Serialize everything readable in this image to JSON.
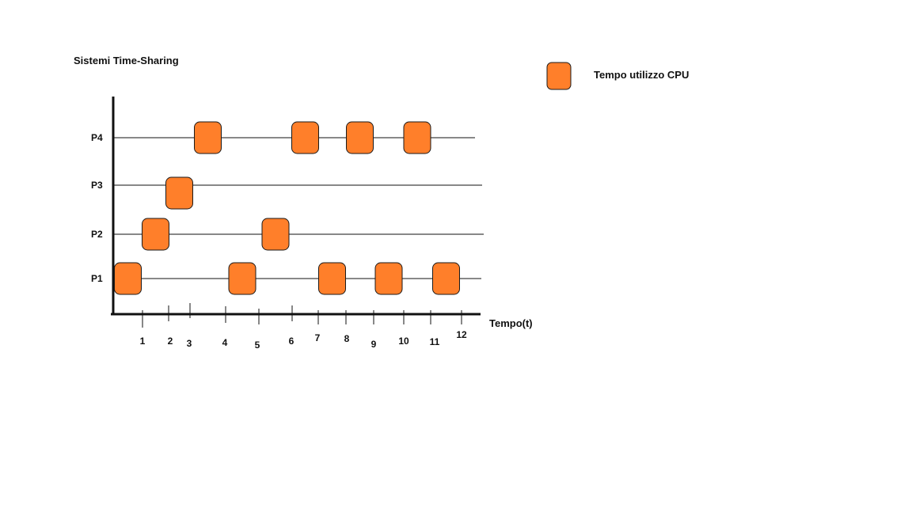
{
  "title": "Sistemi Time-Sharing",
  "legend": {
    "label": "Tempo utilizzo CPU",
    "color": "#ff7f2a"
  },
  "axis": {
    "x_label": "Tempo(t)",
    "ticks": [
      "1",
      "2",
      "3",
      "4",
      "5",
      "6",
      "7",
      "8",
      "9",
      "10",
      "11",
      "12"
    ]
  },
  "processes": [
    {
      "name": "P1",
      "bursts": [
        0.5,
        4.5,
        7.5,
        9.5,
        11.5
      ]
    },
    {
      "name": "P2",
      "bursts": [
        1.5,
        5.5
      ]
    },
    {
      "name": "P3",
      "bursts": [
        2.5
      ]
    },
    {
      "name": "P4",
      "bursts": [
        3.5,
        6.5,
        8.5,
        10.5
      ]
    }
  ],
  "colors": {
    "burst_fill": "#ff7f2a",
    "burst_stroke": "#1a1a1a",
    "line": "#111111"
  }
}
